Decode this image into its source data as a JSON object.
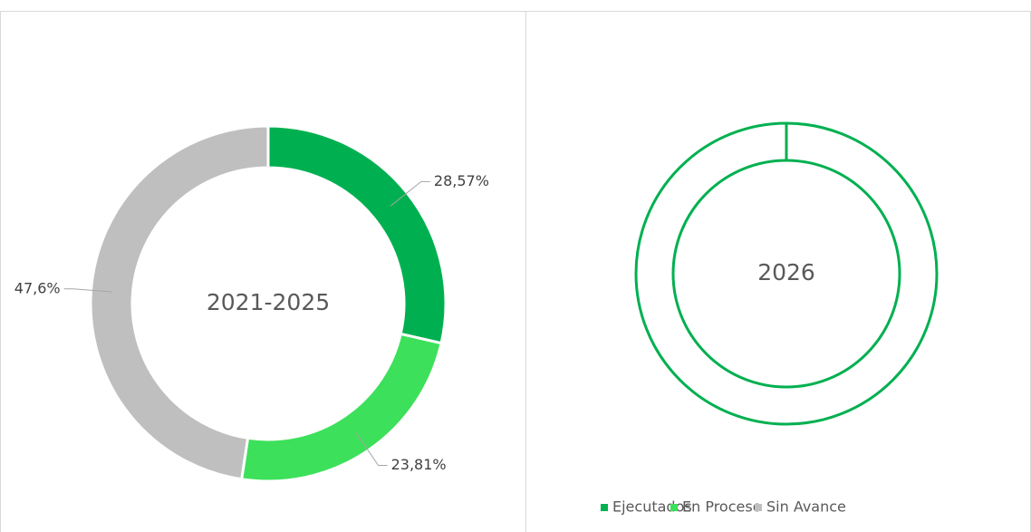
{
  "chart_data": [
    {
      "type": "donut",
      "center_label": "2021-2025",
      "values": [
        28.57,
        23.81,
        47.6
      ],
      "value_labels": [
        "28,57%",
        "23,81%",
        "47,6%"
      ],
      "colors": [
        "#00b050",
        "#3ce05a",
        "#bfbfbf"
      ]
    },
    {
      "type": "donut",
      "center_label": "2026",
      "categories": [
        "Ejecutados",
        "En Proceso",
        "Sin Avance"
      ],
      "colors": [
        "#00b050",
        "#3ce05a",
        "#bfbfbf"
      ],
      "legend": "bottom"
    }
  ]
}
